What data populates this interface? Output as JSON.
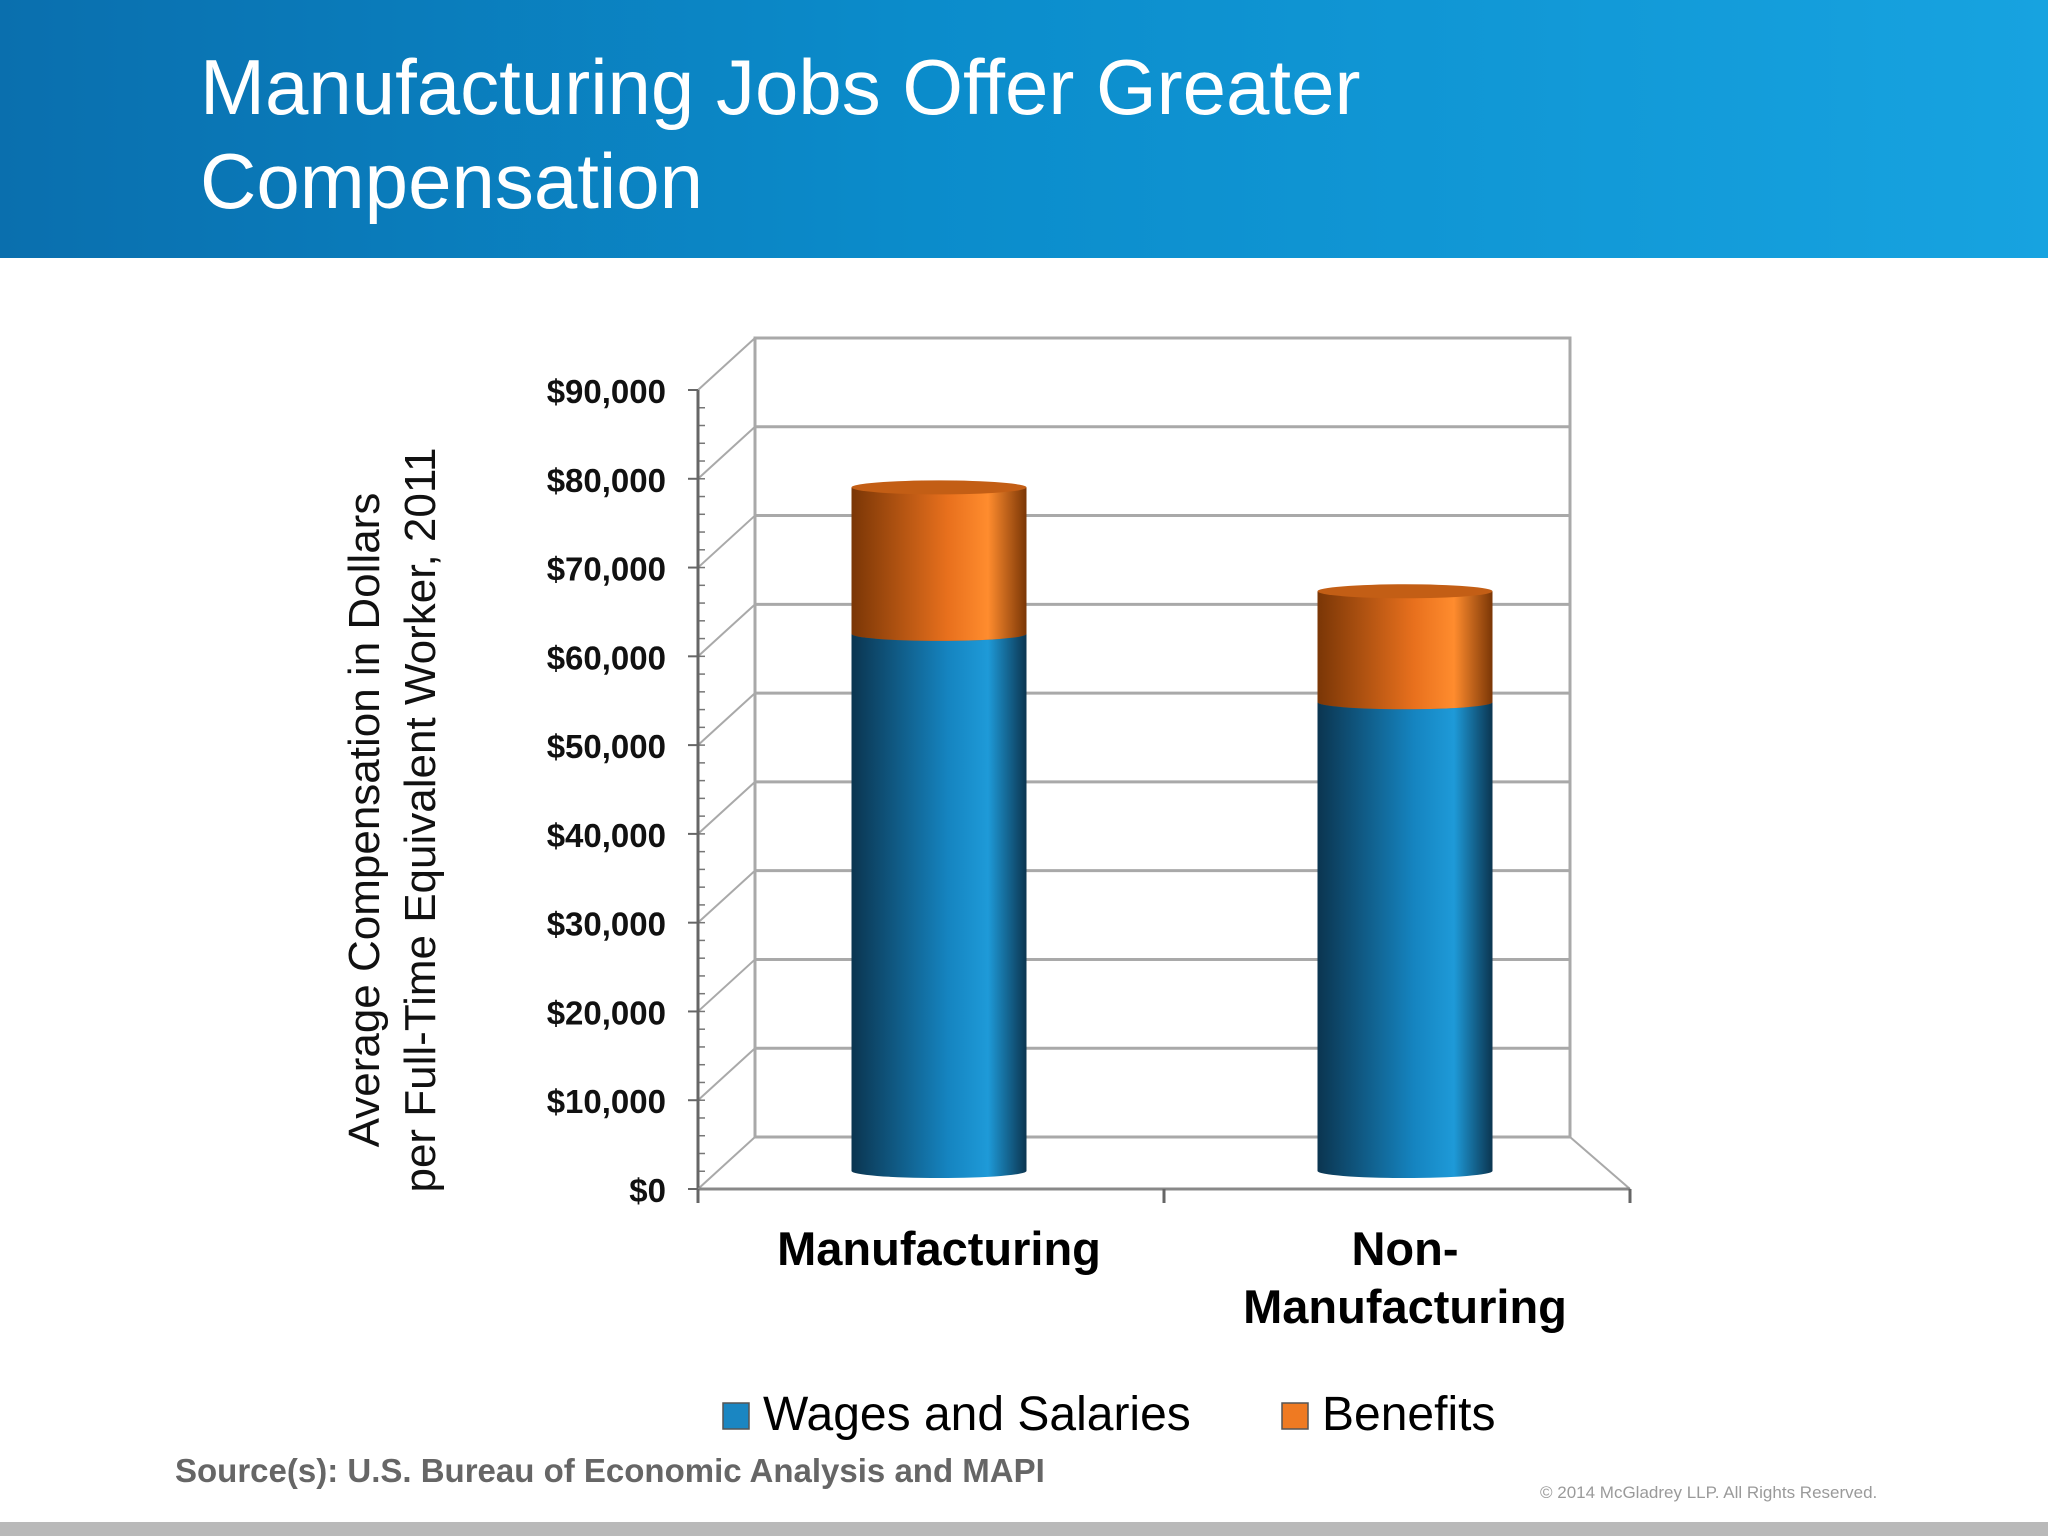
{
  "slide": {
    "title_lines": [
      "Manufacturing Jobs Offer Greater",
      "Compensation"
    ],
    "source": "Source(s): U.S. Bureau of Economic Analysis and MAPI",
    "copyright": "© 2014 McGladrey LLP. All Rights Reserved."
  },
  "colors": {
    "header_start": "#0a6fae",
    "header_end": "#17a3e0",
    "wages": "#1a86c2",
    "benefits": "#ef7a22"
  },
  "chart_data": {
    "type": "bar",
    "stacked": true,
    "style": "3d-cylinder",
    "categories": [
      "Manufacturing",
      "Non-Manufacturing"
    ],
    "category_label_lines": [
      [
        "Manufacturing"
      ],
      [
        "Non-",
        "Manufacturing"
      ]
    ],
    "series": [
      {
        "name": "Wages and Salaries",
        "values": [
          60500,
          52800
        ],
        "color": "#1a86c2"
      },
      {
        "name": "Benefits",
        "values": [
          16500,
          12500
        ],
        "color": "#ef7a22"
      }
    ],
    "ylabel_lines": [
      "Average Compensation in Dollars",
      "per Full-Time Equivalent Worker, 2011"
    ],
    "xlabel": "",
    "ylim": [
      0,
      90000
    ],
    "yticks": [
      0,
      10000,
      20000,
      30000,
      40000,
      50000,
      60000,
      70000,
      80000,
      90000
    ],
    "ytick_labels": [
      "$0",
      "$10,000",
      "$20,000",
      "$30,000",
      "$40,000",
      "$50,000",
      "$60,000",
      "$70,000",
      "$80,000",
      "$90,000"
    ],
    "grid": true,
    "legend_position": "bottom"
  }
}
